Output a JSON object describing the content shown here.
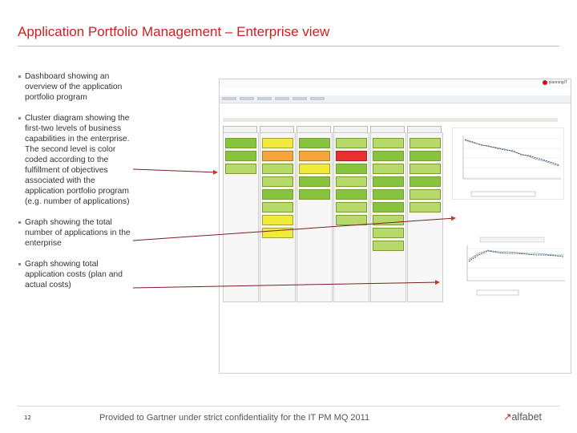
{
  "slide": {
    "title": "Application Portfolio Management – Enterprise view",
    "page_number": "12",
    "footer": "Provided to Gartner under strict confidentiality for the IT PM MQ 2011",
    "brand": "alfabet",
    "accent": "#cc1f1f"
  },
  "bullets": [
    "Dashboard showing an overview of the application portfolio program",
    "Cluster diagram showing the first-two levels of business capabilities in the enterprise. The second level is color coded according to the fulfillment of objectives associated with the application portfolio program (e.g. number of applications)",
    "Graph showing the total number of applications in the enterprise",
    "Graph showing total application costs (plan and actual costs)"
  ],
  "screenshot": {
    "logo_text": "planningIT",
    "colors": {
      "green": "#86c440",
      "light_green": "#b7d96a",
      "yellow": "#f0ea3a",
      "orange": "#f4a63c",
      "red": "#e8312f"
    },
    "cluster_columns": [
      {
        "cells": [
          "g1",
          "g1",
          "g2"
        ]
      },
      {
        "cells": [
          "ye",
          "or",
          "g2",
          "g2",
          "g1",
          "g2",
          "ye",
          "ye"
        ]
      },
      {
        "cells": [
          "g1",
          "or",
          "ye",
          "g1",
          "g1"
        ]
      },
      {
        "cells": [
          "g2",
          "re",
          "g1",
          "g2",
          "g1",
          "g2",
          "g2"
        ]
      },
      {
        "cells": [
          "g2",
          "g1",
          "g2",
          "g1",
          "g1",
          "g1",
          "g2",
          "g2",
          "g2"
        ]
      },
      {
        "cells": [
          "g2",
          "g1",
          "g2",
          "g1",
          "g2",
          "g2"
        ]
      }
    ]
  }
}
